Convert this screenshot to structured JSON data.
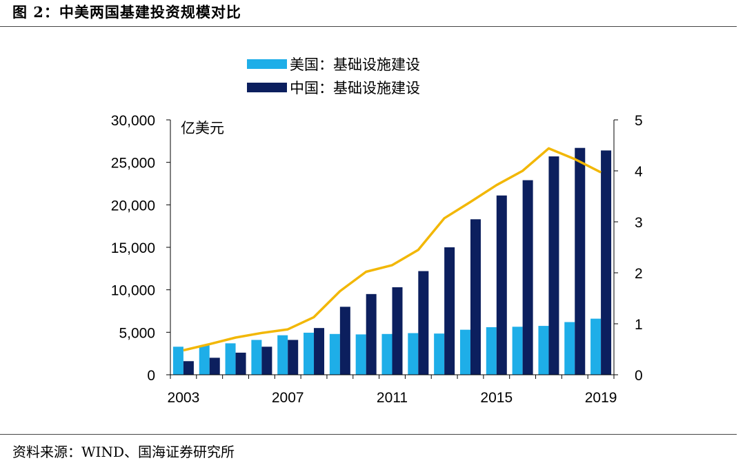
{
  "figure": {
    "title": "图 2：中美两国基建投资规模对比",
    "source": "资料来源：WIND、国海证券研究所"
  },
  "colors": {
    "us_bar": "#1eaee8",
    "cn_bar": "#0c1f5e",
    "ratio_line": "#f2b705",
    "axis": "#000000"
  },
  "chart_data": {
    "type": "bar",
    "unit_label": "亿美元",
    "x": [
      2003,
      2004,
      2005,
      2006,
      2007,
      2008,
      2009,
      2010,
      2011,
      2012,
      2013,
      2014,
      2015,
      2016,
      2017,
      2018,
      2019
    ],
    "x_tick_labels": [
      "2003",
      "2007",
      "2011",
      "2015",
      "2019"
    ],
    "y_left": {
      "lim": [
        0,
        30000
      ],
      "ticks": [
        "0",
        "5,000",
        "10,000",
        "15,000",
        "20,000",
        "25,000",
        "30,000"
      ]
    },
    "y_right": {
      "lim": [
        0,
        5
      ],
      "ticks": [
        "0",
        "1",
        "2",
        "3",
        "4",
        "5"
      ]
    },
    "series": [
      {
        "name": "美国：基础设施建设",
        "kind": "bar",
        "axis": "left",
        "values": [
          3300,
          3450,
          3700,
          4100,
          4650,
          4950,
          4800,
          4750,
          4800,
          4900,
          4850,
          5300,
          5600,
          5650,
          5750,
          6200,
          6600
        ]
      },
      {
        "name": "中国：基础设施建设",
        "kind": "bar",
        "axis": "left",
        "values": [
          1600,
          2000,
          2600,
          3300,
          4100,
          5500,
          8000,
          9500,
          10300,
          12200,
          15000,
          18300,
          21100,
          22900,
          25700,
          26700,
          26400
        ]
      },
      {
        "kind": "line",
        "axis": "right",
        "values": [
          0.48,
          0.6,
          0.73,
          0.82,
          0.89,
          1.13,
          1.64,
          2.02,
          2.15,
          2.45,
          3.07,
          3.39,
          3.72,
          4.0,
          4.44,
          4.23,
          3.97
        ]
      }
    ],
    "legend_position": "top-center",
    "grid": false
  }
}
